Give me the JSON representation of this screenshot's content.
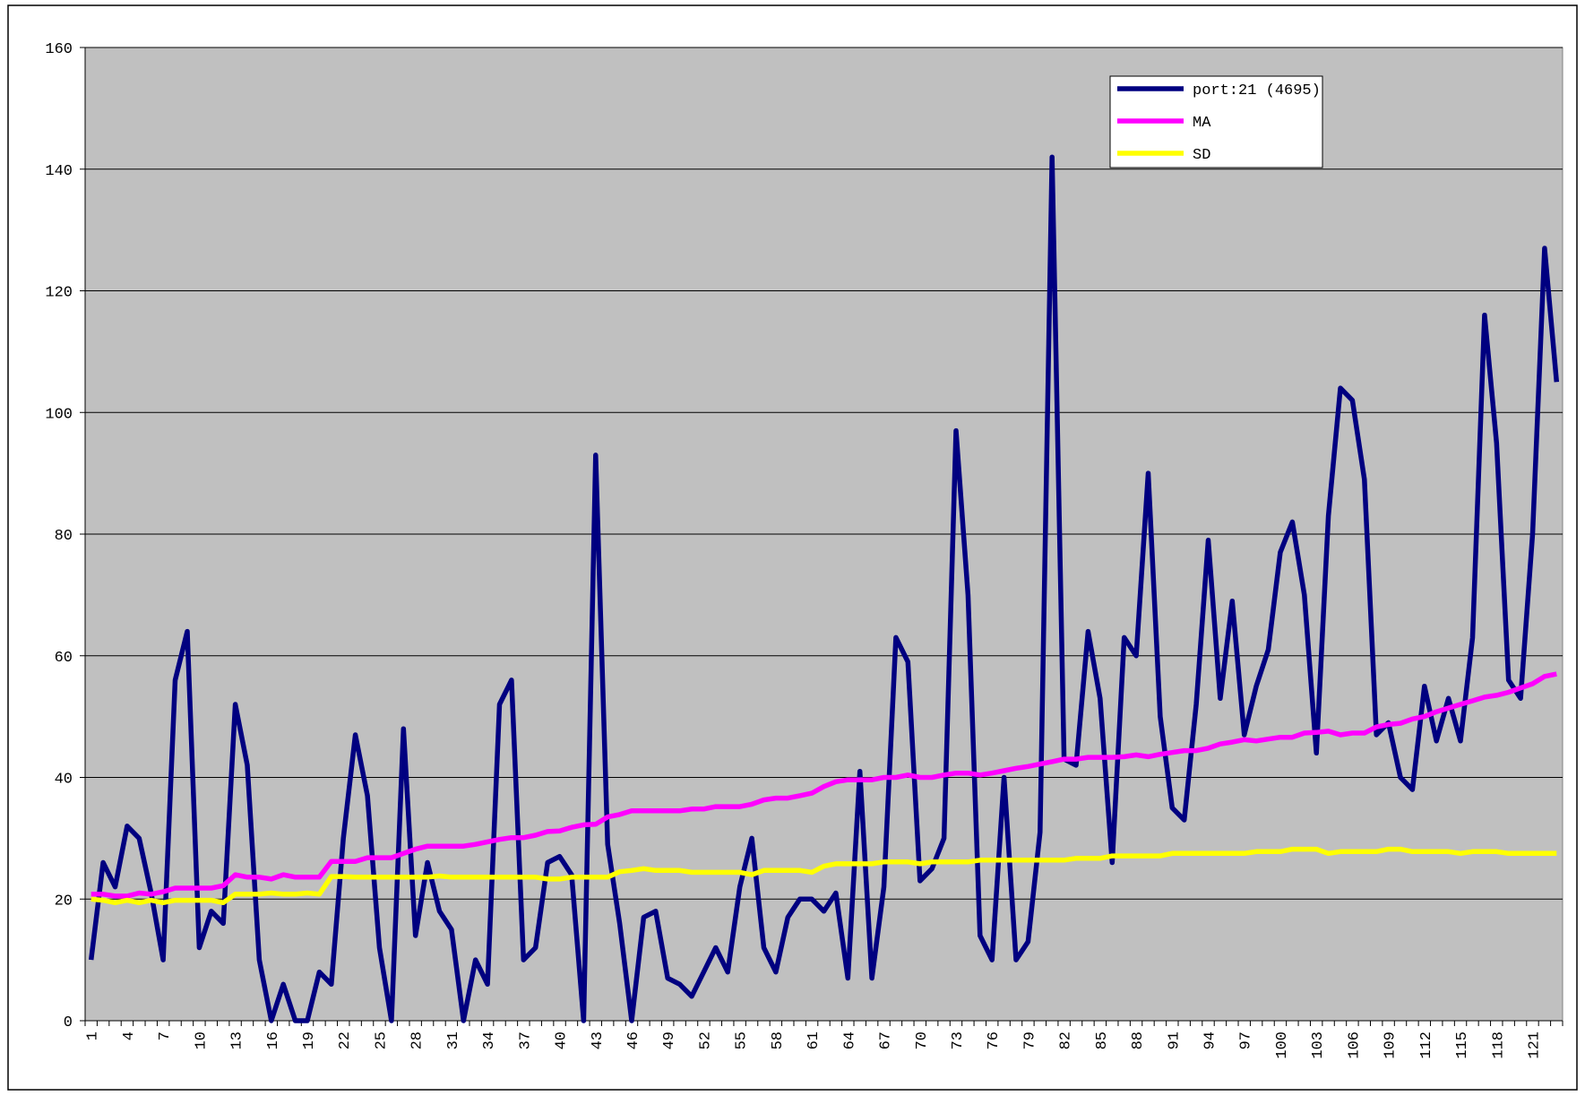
{
  "chart_data": {
    "type": "line",
    "categories": [
      1,
      null,
      null,
      4,
      null,
      null,
      7,
      null,
      null,
      10,
      null,
      null,
      13,
      null,
      null,
      16,
      null,
      null,
      19,
      null,
      null,
      22,
      null,
      null,
      25,
      null,
      null,
      28,
      null,
      null,
      31,
      null,
      null,
      34,
      null,
      null,
      37,
      null,
      null,
      40,
      null,
      null,
      43,
      null,
      null,
      46,
      null,
      null,
      49,
      null,
      null,
      52,
      null,
      null,
      55,
      null,
      null,
      58,
      null,
      null,
      61,
      null,
      null,
      64,
      null,
      null,
      67,
      null,
      null,
      70,
      null,
      null,
      73,
      null,
      null,
      76,
      null,
      null,
      79,
      null,
      null,
      82,
      null,
      null,
      85,
      null,
      null,
      88,
      null,
      null,
      91,
      null,
      null,
      94,
      null,
      null,
      97,
      null,
      null,
      100,
      null,
      null,
      103,
      null,
      null,
      106,
      null,
      null,
      109,
      null,
      null,
      112,
      null,
      null,
      115,
      null,
      null,
      118,
      null,
      null,
      121,
      null,
      null
    ],
    "series": [
      {
        "name": "port:21 (4695)",
        "color": "#000080",
        "values": [
          10,
          26,
          22,
          32,
          30,
          21,
          10,
          56,
          64,
          12,
          18,
          16,
          52,
          42,
          10,
          0,
          6,
          0,
          0,
          8,
          6,
          30,
          47,
          37,
          12,
          0,
          48,
          14,
          26,
          18,
          15,
          0,
          10,
          6,
          52,
          56,
          10,
          12,
          26,
          27,
          24,
          0,
          93,
          29,
          16,
          0,
          17,
          18,
          7,
          6,
          4,
          8,
          12,
          8,
          22,
          30,
          12,
          8,
          17,
          20,
          20,
          18,
          21,
          7,
          41,
          7,
          22,
          63,
          59,
          23,
          25,
          30,
          97,
          70,
          14,
          10,
          40,
          10,
          13,
          31,
          142,
          43,
          42,
          64,
          53,
          26,
          63,
          60,
          90,
          50,
          35,
          33,
          52,
          79,
          53,
          69,
          47,
          55,
          61,
          77,
          82,
          70,
          44,
          83,
          104,
          102,
          89,
          47,
          49,
          40,
          38,
          55,
          46,
          53,
          46,
          63,
          116,
          95,
          56,
          53,
          80,
          127,
          105
        ]
      },
      {
        "name": "MA",
        "color": "#ff00ff",
        "values": [
          20.8,
          20.8,
          20.5,
          20.5,
          21,
          20.8,
          21.2,
          21.8,
          21.8,
          21.8,
          21.8,
          22.2,
          24,
          23.6,
          23.6,
          23.3,
          24,
          23.6,
          23.6,
          23.6,
          26.2,
          26.2,
          26.2,
          26.8,
          26.8,
          26.8,
          27.5,
          28.2,
          28.7,
          28.7,
          28.7,
          28.7,
          29,
          29.4,
          29.8,
          30.1,
          30.1,
          30.5,
          31.1,
          31.2,
          31.8,
          32.2,
          32.3,
          33.5,
          33.9,
          34.5,
          34.5,
          34.5,
          34.5,
          34.5,
          34.8,
          34.8,
          35.2,
          35.2,
          35.2,
          35.6,
          36.3,
          36.6,
          36.6,
          37,
          37.4,
          38.5,
          39.3,
          39.6,
          39.6,
          39.6,
          40,
          40,
          40.4,
          40,
          40,
          40.4,
          40.7,
          40.7,
          40.4,
          40.7,
          41.1,
          41.5,
          41.8,
          42.2,
          42.6,
          43,
          43,
          43.3,
          43.3,
          43.3,
          43.4,
          43.7,
          43.4,
          43.8,
          44.1,
          44.4,
          44.4,
          44.8,
          45.5,
          45.8,
          46.2,
          46,
          46.3,
          46.6,
          46.6,
          47.3,
          47.4,
          47.6,
          47,
          47.3,
          47.3,
          48.3,
          48.7,
          48.9,
          49.6,
          50,
          50.8,
          51.4,
          52,
          52.6,
          53.2,
          53.5,
          54,
          54.7,
          55.4,
          56.6,
          57
        ]
      },
      {
        "name": "SD",
        "color": "#ffff00",
        "values": [
          20,
          19.8,
          19.4,
          19.8,
          19.4,
          19.8,
          19.4,
          19.8,
          19.8,
          19.8,
          19.8,
          19.4,
          20.8,
          20.8,
          20.8,
          21,
          20.8,
          20.8,
          21,
          20.8,
          23.7,
          23.7,
          23.6,
          23.6,
          23.6,
          23.6,
          23.6,
          23.6,
          23.6,
          23.8,
          23.6,
          23.6,
          23.6,
          23.6,
          23.6,
          23.6,
          23.6,
          23.6,
          23.3,
          23.3,
          23.6,
          23.6,
          23.6,
          23.6,
          24.5,
          24.7,
          25,
          24.7,
          24.7,
          24.7,
          24.4,
          24.4,
          24.4,
          24.4,
          24.4,
          24,
          24.7,
          24.7,
          24.7,
          24.7,
          24.4,
          25.4,
          25.8,
          25.8,
          25.8,
          25.8,
          26.1,
          26.1,
          26.1,
          25.8,
          26.1,
          26.1,
          26.1,
          26.1,
          26.4,
          26.4,
          26.4,
          26.4,
          26.4,
          26.4,
          26.4,
          26.4,
          26.7,
          26.7,
          26.7,
          27.1,
          27.1,
          27.1,
          27.1,
          27.1,
          27.5,
          27.5,
          27.5,
          27.5,
          27.5,
          27.5,
          27.5,
          27.8,
          27.8,
          27.8,
          28.2,
          28.2,
          28.2,
          27.5,
          27.8,
          27.8,
          27.8,
          27.8,
          28.2,
          28.2,
          27.8,
          27.8,
          27.8,
          27.8,
          27.5,
          27.8,
          27.8,
          27.8,
          27.5,
          27.5,
          27.5,
          27.5,
          27.5
        ]
      }
    ],
    "ylim": [
      0,
      160
    ],
    "yticks": [
      0,
      20,
      40,
      60,
      80,
      100,
      120,
      140,
      160
    ],
    "grid": true,
    "legend": "top-right",
    "background": "#c0c0c0"
  }
}
